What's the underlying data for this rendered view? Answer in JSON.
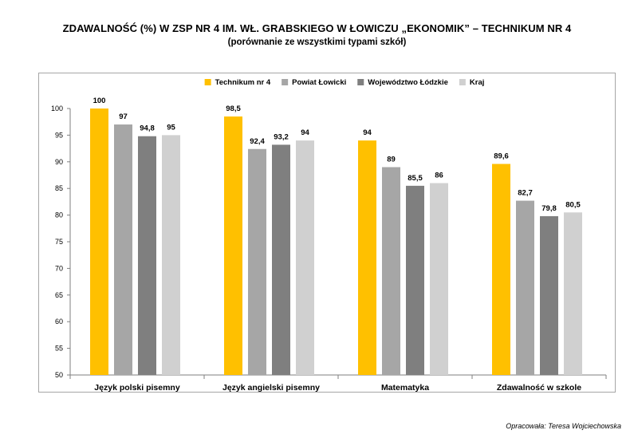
{
  "chart_data": {
    "type": "bar",
    "title": "ZDAWALNOŚĆ (%) W ZSP NR 4 IM. WŁ. GRABSKIEGO W ŁOWICZU „EKONOMIK” – TECHNIKUM NR 4",
    "subtitle": "(porównanie ze wszystkimi typami szkół)",
    "categories": [
      "Język polski pisemny",
      "Język angielski pisemny",
      "Matematyka",
      "Zdawalność w szkole"
    ],
    "series": [
      {
        "name": "Technikum nr 4",
        "color": "#ffc000",
        "values": [
          100,
          98.5,
          94,
          89.6
        ],
        "labels": [
          "100",
          "98,5",
          "94",
          "89,6"
        ]
      },
      {
        "name": "Powiat Łowicki",
        "color": "#a6a6a6",
        "values": [
          97,
          92.4,
          89,
          82.7
        ],
        "labels": [
          "97",
          "92,4",
          "89",
          "82,7"
        ]
      },
      {
        "name": "Województwo Łódzkie",
        "color": "#7f7f7f",
        "values": [
          94.8,
          93.2,
          85.5,
          79.8
        ],
        "labels": [
          "94,8",
          "93,2",
          "85,5",
          "79,8"
        ]
      },
      {
        "name": "Kraj",
        "color": "#d0d0d0",
        "values": [
          95,
          94,
          86,
          80.5
        ],
        "labels": [
          "95",
          "94",
          "86",
          "80,5"
        ]
      }
    ],
    "ylim": [
      50,
      100
    ],
    "yticks": [
      50,
      55,
      60,
      65,
      70,
      75,
      80,
      85,
      90,
      95,
      100
    ],
    "xlabel": "",
    "ylabel": "",
    "grid": false,
    "legend": "top-center"
  },
  "footer": {
    "credit": "Opracowała: Teresa Wojciechowska"
  }
}
